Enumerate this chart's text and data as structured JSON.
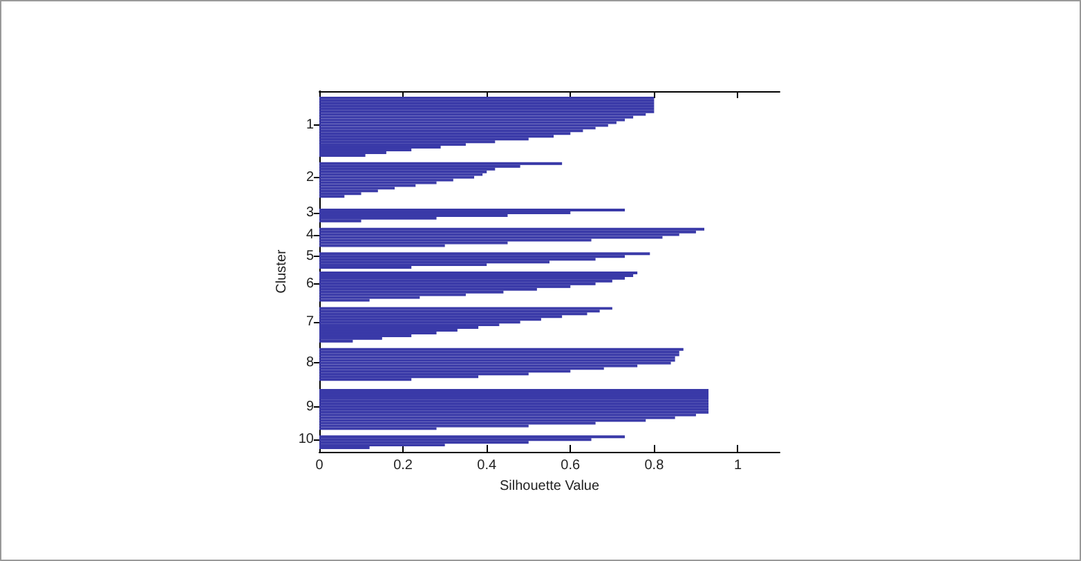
{
  "chart_data": {
    "type": "bar",
    "orientation": "horizontal",
    "xlabel": "Silhouette Value",
    "ylabel": "Cluster",
    "categories": [
      null,
      null,
      null,
      null,
      null,
      null,
      null,
      null,
      null,
      null,
      null,
      null,
      "1",
      null,
      null,
      null,
      null,
      null,
      null,
      null,
      null,
      null,
      null,
      null,
      null,
      null,
      null,
      null,
      null,
      null,
      null,
      "2",
      null,
      null,
      null,
      null,
      null,
      null,
      null,
      null,
      null,
      null,
      null,
      null,
      "3",
      null,
      null,
      null,
      null,
      null,
      null,
      null,
      "4",
      null,
      null,
      null,
      null,
      null,
      null,
      null,
      "5",
      null,
      null,
      null,
      null,
      null,
      null,
      null,
      null,
      null,
      "6",
      null,
      null,
      null,
      null,
      null,
      null,
      null,
      null,
      null,
      null,
      null,
      null,
      null,
      "7",
      null,
      null,
      null,
      null,
      null,
      null,
      null,
      null,
      null,
      null,
      null,
      null,
      null,
      null,
      "8",
      null,
      null,
      null,
      null,
      null,
      null,
      null,
      null,
      null,
      null,
      null,
      null,
      null,
      null,
      null,
      "9",
      null,
      null,
      null,
      null,
      null,
      null,
      null,
      null,
      null,
      null,
      null,
      "10",
      null,
      null,
      null,
      null
    ],
    "series": [
      {
        "color": "#3a3aa8",
        "values": [
          null,
          null,
          0.8,
          0.8,
          0.8,
          0.8,
          0.8,
          0.8,
          0.78,
          0.75,
          0.73,
          0.71,
          0.69,
          0.66,
          0.63,
          0.6,
          0.56,
          0.5,
          0.42,
          0.35,
          0.29,
          0.22,
          0.16,
          0.11,
          null,
          null,
          0.58,
          0.48,
          0.42,
          0.4,
          0.39,
          0.37,
          0.32,
          0.28,
          0.23,
          0.18,
          0.14,
          0.1,
          0.06,
          null,
          null,
          null,
          null,
          0.73,
          0.6,
          0.45,
          0.28,
          0.1,
          null,
          null,
          0.92,
          0.9,
          0.86,
          0.82,
          0.65,
          0.45,
          0.3,
          null,
          null,
          0.79,
          0.73,
          0.66,
          0.55,
          0.4,
          0.22,
          null,
          0.76,
          0.75,
          0.73,
          0.7,
          0.66,
          0.6,
          0.52,
          0.44,
          0.35,
          0.24,
          0.12,
          null,
          null,
          0.7,
          0.67,
          0.64,
          0.58,
          0.53,
          0.48,
          0.43,
          0.38,
          0.33,
          0.28,
          0.22,
          0.15,
          0.08,
          null,
          null,
          0.87,
          0.86,
          0.86,
          0.85,
          0.85,
          0.84,
          0.76,
          0.68,
          0.6,
          0.5,
          0.38,
          0.22,
          null,
          null,
          null,
          0.93,
          0.93,
          0.93,
          0.93,
          0.93,
          0.93,
          0.93,
          0.93,
          0.93,
          0.9,
          0.85,
          0.78,
          0.66,
          0.5,
          0.28,
          null,
          null,
          0.73,
          0.65,
          0.5,
          0.3,
          0.12,
          null
        ]
      }
    ],
    "xlim": [
      0,
      1.1
    ],
    "xticks": [
      0,
      0.2,
      0.4,
      0.6,
      0.8,
      1
    ],
    "grid": false
  }
}
